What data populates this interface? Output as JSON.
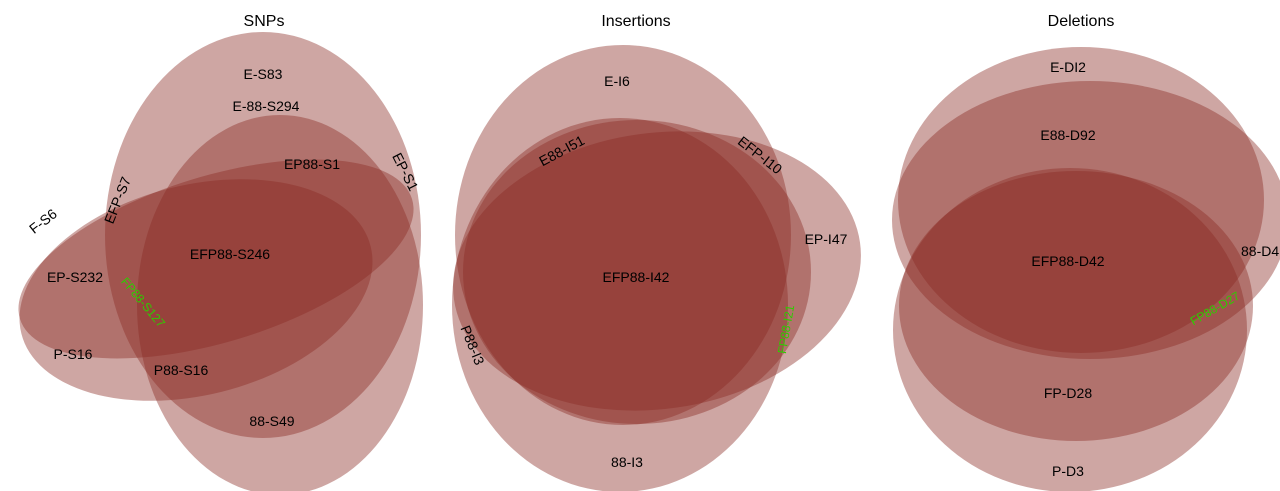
{
  "colors": {
    "set_fill": "#8a2a24",
    "label_default": "#000000",
    "label_highlight": "#2ecc00"
  },
  "panels": [
    {
      "title": "SNPs",
      "labels": [
        "E-S83",
        "E-88-S294",
        "EP88-S1",
        "EP-S1",
        "EFP-S7",
        "F-S6",
        "EFP88-S246",
        "EP-S232",
        "FP88-S127",
        "P-S16",
        "P88-S16",
        "88-S49"
      ]
    },
    {
      "title": "Insertions",
      "labels": [
        "E-I6",
        "E88-I51",
        "EFP-I10",
        "EP-I47",
        "EFP88-I42",
        "P88-I3",
        "FP88-I21",
        "88-I3"
      ]
    },
    {
      "title": "Deletions",
      "labels": [
        "E-DI2",
        "E88-D92",
        "88-D4",
        "EFP88-D42",
        "FP88-D27",
        "FP-D28",
        "P-D3"
      ]
    }
  ]
}
